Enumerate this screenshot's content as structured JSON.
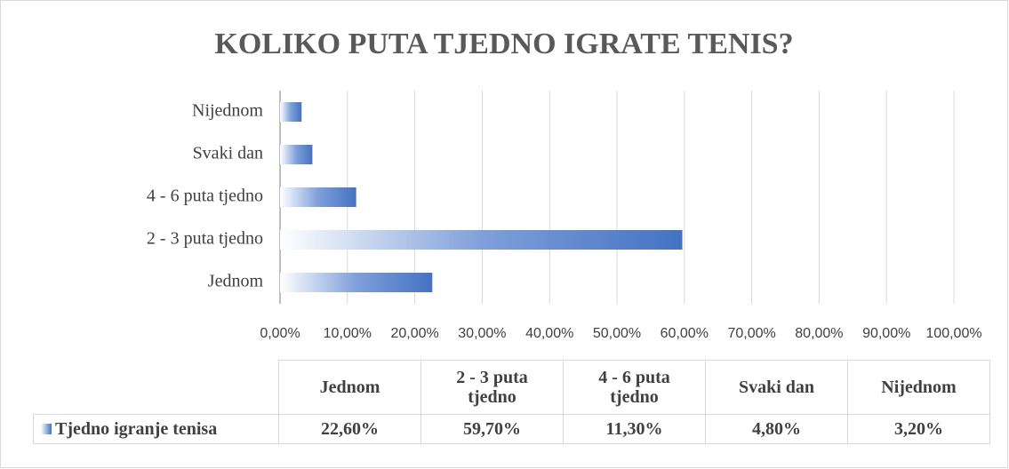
{
  "chart_data": {
    "type": "barh",
    "title": "KOLIKO PUTA TJEDNO IGRATE TENIS?",
    "categories": [
      "Jednom",
      "2 - 3 puta tjedno",
      "4 - 6 puta tjedno",
      "Svaki dan",
      "Nijednom"
    ],
    "series": [
      {
        "name": "Tjedno igranje tenisa",
        "color": "#4472c4",
        "values": [
          22.6,
          59.7,
          11.3,
          4.8,
          3.2
        ],
        "value_labels": [
          "22,60%",
          "59,70%",
          "11,30%",
          "4,80%",
          "3,20%"
        ]
      }
    ],
    "xlim": [
      0,
      100
    ],
    "xticks": [
      {
        "value": 0,
        "label": "0,00%"
      },
      {
        "value": 10,
        "label": "10,00%"
      },
      {
        "value": 20,
        "label": "20,00%"
      },
      {
        "value": 30,
        "label": "30,00%"
      },
      {
        "value": 40,
        "label": "40,00%"
      },
      {
        "value": 50,
        "label": "50,00%"
      },
      {
        "value": 60,
        "label": "60,00%"
      },
      {
        "value": 70,
        "label": "70,00%"
      },
      {
        "value": 80,
        "label": "80,00%"
      },
      {
        "value": 90,
        "label": "90,00%"
      },
      {
        "value": 100,
        "label": "100,00%"
      }
    ],
    "grid": true,
    "data_table": true
  }
}
